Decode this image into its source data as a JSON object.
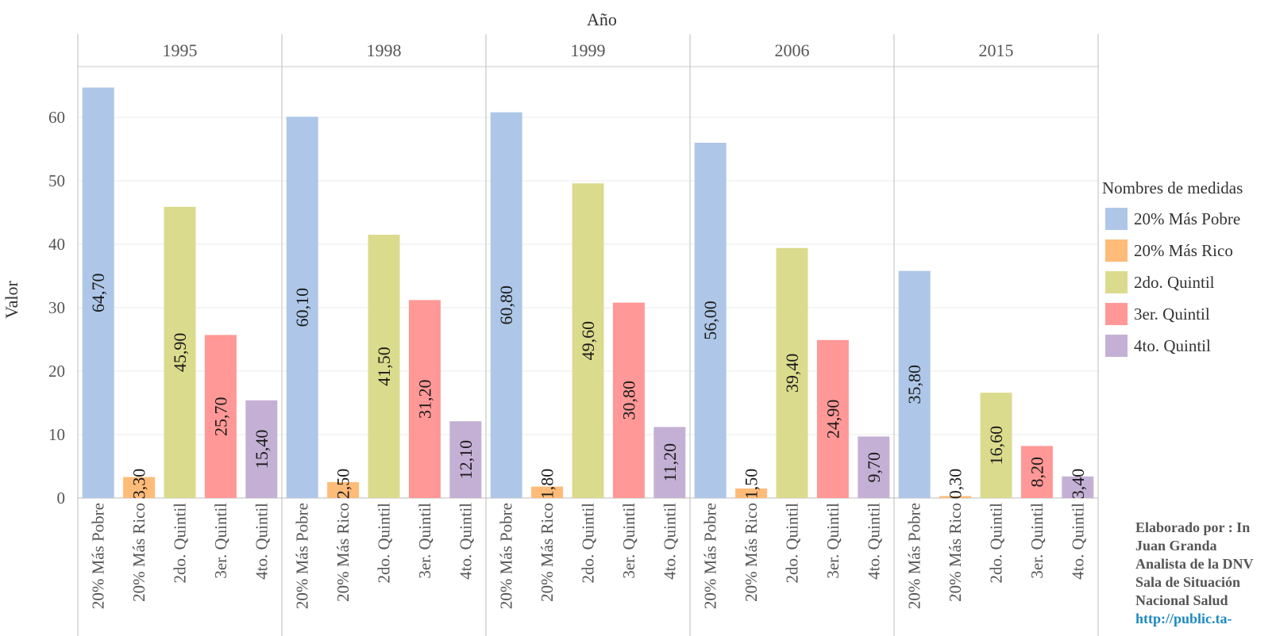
{
  "chart_data": {
    "type": "bar",
    "column_header": "Año",
    "ylabel": "Valor",
    "ylim": [
      0,
      67
    ],
    "yticks": [
      0,
      10,
      20,
      30,
      40,
      50,
      60
    ],
    "grid": true,
    "panels": [
      "1995",
      "1998",
      "1999",
      "2006",
      "2015"
    ],
    "categories": [
      "20% Más Pobre",
      "20% Más Rico",
      "2do. Quintil",
      "3er. Quintil",
      "4to. Quintil"
    ],
    "series": [
      {
        "name": "20% Más Pobre",
        "color": "#aec7e8",
        "values": [
          64.7,
          60.1,
          60.8,
          56.0,
          35.8
        ],
        "labels": [
          "64,70",
          "60,10",
          "60,80",
          "56,00",
          "35,80"
        ]
      },
      {
        "name": "20% Más Rico",
        "color": "#ffbb78",
        "values": [
          3.3,
          2.5,
          1.8,
          1.5,
          0.3
        ],
        "labels": [
          "3,30",
          "2,50",
          "1,80",
          "1,50",
          "0,30"
        ]
      },
      {
        "name": "2do. Quintil",
        "color": "#dbdb8d",
        "values": [
          45.9,
          41.5,
          49.6,
          39.4,
          16.6
        ],
        "labels": [
          "45,90",
          "41,50",
          "49,60",
          "39,40",
          "16,60"
        ]
      },
      {
        "name": "3er. Quintil",
        "color": "#ff9896",
        "values": [
          25.7,
          31.2,
          30.8,
          24.9,
          8.2
        ],
        "labels": [
          "25,70",
          "31,20",
          "30,80",
          "24,90",
          "8,20"
        ]
      },
      {
        "name": "4to. Quintil",
        "color": "#c5b0d5",
        "values": [
          15.4,
          12.1,
          11.2,
          9.7,
          3.4
        ],
        "labels": [
          "15,40",
          "12,10",
          "11,20",
          "9,70",
          "3,40"
        ]
      }
    ],
    "legend": {
      "title": "Nombres de medidas",
      "position": "right"
    }
  },
  "credits": {
    "line1": "Elaborado por : In",
    "line2": "Juan Granda",
    "line3": "Analista de la DNV",
    "line4": "Sala de Situación",
    "line5": "Nacional Salud",
    "link": "http://public.ta-"
  }
}
